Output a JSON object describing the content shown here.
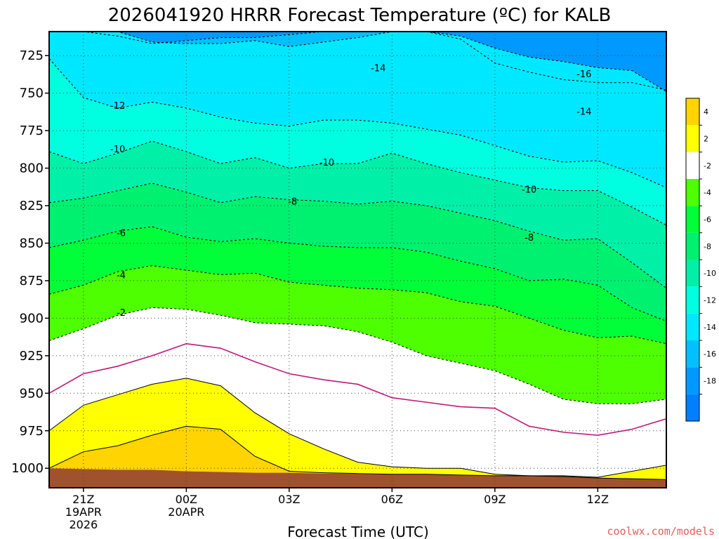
{
  "chart_data": {
    "type": "time-height contour",
    "title": "2026041920 HRRR Forecast Temperature (ºC) for KALB",
    "xlabel": "Forecast Time (UTC)",
    "ylabel": "",
    "x_ticks": [
      {
        "hour": 1,
        "lines": [
          "21Z",
          "19APR",
          "2026"
        ]
      },
      {
        "hour": 4,
        "lines": [
          "00Z",
          "20APR"
        ]
      },
      {
        "hour": 7,
        "lines": [
          "03Z"
        ]
      },
      {
        "hour": 10,
        "lines": [
          "06Z"
        ]
      },
      {
        "hour": 13,
        "lines": [
          "09Z"
        ]
      },
      {
        "hour": 16,
        "lines": [
          "12Z"
        ]
      }
    ],
    "xlim": [
      0,
      18
    ],
    "y_ticks": [
      725,
      750,
      775,
      800,
      825,
      850,
      875,
      900,
      925,
      950,
      975,
      1000
    ],
    "ylim": [
      1013,
      709
    ],
    "hours": [
      0,
      1,
      2,
      3,
      4,
      5,
      6,
      7,
      8,
      9,
      10,
      11,
      12,
      13,
      14,
      15,
      16,
      17,
      18
    ],
    "surface_pressure": [
      1000,
      1000.5,
      1001,
      1001,
      1002,
      1002.5,
      1003,
      1003,
      1003.5,
      1003.5,
      1004,
      1004,
      1004.5,
      1005,
      1005,
      1005.5,
      1006.5,
      1007,
      1007.5
    ],
    "isotherms": [
      {
        "value": -16,
        "pressures": [
          709,
          709,
          712,
          717,
          715,
          713,
          713,
          711,
          709,
          709,
          709,
          709,
          714,
          730,
          736,
          741,
          743,
          743,
          748
        ]
      },
      {
        "value": -14,
        "pressures": [
          709,
          709,
          709,
          716,
          717,
          717,
          715,
          719,
          716,
          713,
          709,
          709,
          712,
          720,
          726,
          729,
          733,
          735,
          749
        ]
      },
      {
        "value": -12,
        "pressures": [
          727,
          753,
          760,
          756,
          760,
          766,
          770,
          772,
          768,
          768,
          770,
          774,
          778,
          785,
          792,
          796,
          795,
          803,
          813
        ]
      },
      {
        "value": -10,
        "pressures": [
          789,
          797,
          790,
          782,
          789,
          797,
          793,
          800,
          797,
          797,
          790,
          797,
          803,
          808,
          813,
          815,
          815,
          826,
          838
        ]
      },
      {
        "value": -8,
        "pressures": [
          823,
          820,
          815,
          810,
          816,
          823,
          819,
          821,
          822,
          824,
          822,
          825,
          830,
          835,
          842,
          848,
          847,
          863,
          880
        ]
      },
      {
        "value": -6,
        "pressures": [
          853,
          848,
          842,
          839,
          846,
          849,
          847,
          850,
          852,
          853,
          853,
          856,
          862,
          867,
          875,
          874,
          878,
          893,
          902
        ]
      },
      {
        "value": -4,
        "pressures": [
          884,
          878,
          869,
          865,
          868,
          871,
          870,
          876,
          878,
          880,
          881,
          883,
          889,
          892,
          900,
          908,
          913,
          912,
          917
        ]
      },
      {
        "value": -2,
        "pressures": [
          915,
          907,
          898,
          893,
          894,
          898,
          903,
          904,
          905,
          909,
          916,
          925,
          930,
          935,
          944,
          954,
          957,
          957,
          954
        ]
      },
      {
        "value": 0,
        "pressures": [
          950,
          937,
          932,
          925,
          917,
          920,
          929,
          937,
          941,
          944,
          953,
          956,
          959,
          960,
          972,
          976,
          978,
          974,
          967
        ]
      },
      {
        "value": 2,
        "pressures": [
          975,
          958,
          951,
          944,
          940,
          945,
          963,
          977,
          987,
          996,
          999,
          1000,
          1000,
          1004,
          1005,
          1005,
          1006,
          1002,
          998
        ]
      },
      {
        "value": 4,
        "pressures": [
          1000,
          989,
          985,
          978,
          972,
          974,
          992,
          1002,
          1003,
          1003.5,
          1004,
          1004,
          1004.5,
          1005,
          1005,
          1005.5,
          1006.5,
          1007,
          1007.5
        ]
      }
    ],
    "zero_line": {
      "value": 0,
      "color": "#c0187a"
    },
    "contour_labels": [
      {
        "text": "-14",
        "hour": 9.6,
        "pressure": 733
      },
      {
        "text": "-16",
        "hour": 15.6,
        "pressure": 737
      },
      {
        "text": "-12",
        "hour": 2.0,
        "pressure": 758
      },
      {
        "text": "-14",
        "hour": 15.6,
        "pressure": 762
      },
      {
        "text": "-10",
        "hour": 2.0,
        "pressure": 787
      },
      {
        "text": "-10",
        "hour": 8.1,
        "pressure": 796
      },
      {
        "text": "-10",
        "hour": 14.0,
        "pressure": 814
      },
      {
        "text": "-8",
        "hour": 7.1,
        "pressure": 822
      },
      {
        "text": "-6",
        "hour": 2.1,
        "pressure": 843
      },
      {
        "text": "-8",
        "hour": 14.0,
        "pressure": 846
      },
      {
        "text": "-4",
        "hour": 2.1,
        "pressure": 871
      },
      {
        "text": "-2",
        "hour": 2.1,
        "pressure": 896
      }
    ],
    "colorbar": {
      "colors": [
        "#ffd400",
        "#ffff00",
        "#ffffff",
        "#4dff00",
        "#00ff38",
        "#00f070",
        "#00f0a8",
        "#00ffe0",
        "#00e8ff",
        "#00c0ff",
        "#0099ff",
        "#0080ff"
      ],
      "tick_labels": [
        "4",
        "2",
        "-2",
        "-4",
        "-6",
        "-8",
        "-10",
        "-12",
        "-14",
        "-16",
        "-18"
      ],
      "bins": [
        [
          4,
          6
        ],
        [
          2,
          4
        ],
        [
          -2,
          2
        ],
        [
          -4,
          -2
        ],
        [
          -6,
          -4
        ],
        [
          -8,
          -6
        ],
        [
          -10,
          -8
        ],
        [
          -12,
          -10
        ],
        [
          -14,
          -12
        ],
        [
          -16,
          -14
        ],
        [
          -18,
          -16
        ],
        [
          -20,
          -18
        ]
      ]
    },
    "ground_color": "#a0522d"
  },
  "credit": "coolwx.com/models"
}
